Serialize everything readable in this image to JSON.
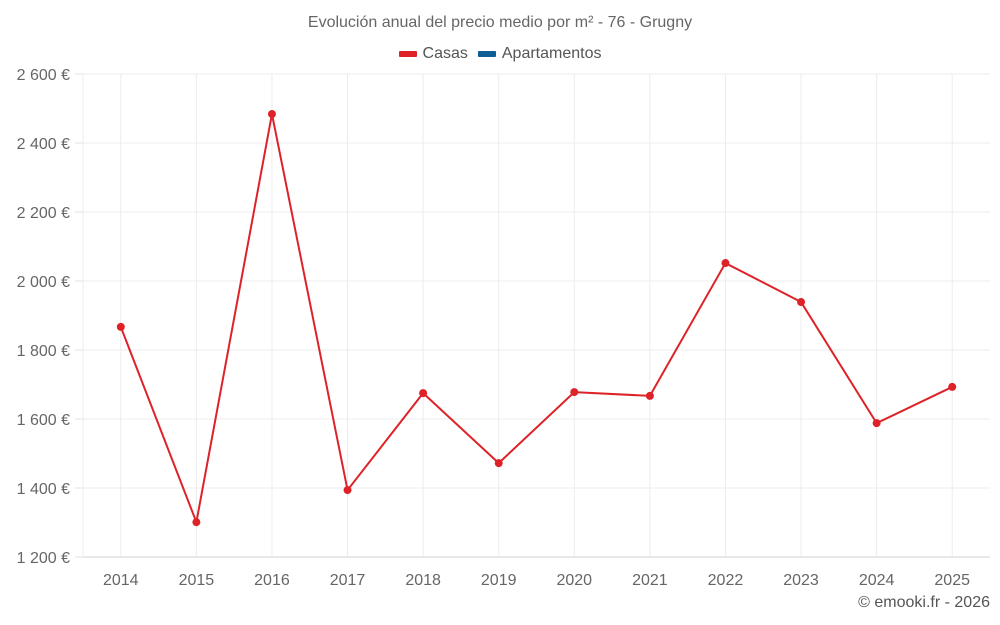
{
  "chart_data": {
    "type": "line",
    "title": "Evolución anual del precio medio por m² - 76 - Grugny",
    "categories": [
      "2014",
      "2015",
      "2016",
      "2017",
      "2018",
      "2019",
      "2020",
      "2021",
      "2022",
      "2023",
      "2024",
      "2025"
    ],
    "series": [
      {
        "name": "Casas",
        "color": "#dd2328",
        "values": [
          1867,
          1301,
          2484,
          1394,
          1675,
          1472,
          1678,
          1667,
          2052,
          1939,
          1588,
          1693
        ]
      },
      {
        "name": "Apartamentos",
        "color": "#0e5e96",
        "values": []
      }
    ],
    "xlabel": "",
    "ylabel": "",
    "ylim": [
      1200,
      2600
    ],
    "yticks": [
      1200,
      1400,
      1600,
      1800,
      2000,
      2200,
      2400,
      2600
    ],
    "ytick_labels": [
      "1 200 €",
      "1 400 €",
      "1 600 €",
      "1 800 €",
      "2 000 €",
      "2 200 €",
      "2 400 €",
      "2 600 €"
    ],
    "grid": true,
    "legend_position": "top"
  },
  "header": {
    "title": "Evolución anual del precio medio por m² - 76 - Grugny"
  },
  "legend": {
    "items": [
      {
        "label": "Casas",
        "color": "#dd2328"
      },
      {
        "label": "Apartamentos",
        "color": "#0e5e96"
      }
    ]
  },
  "footer": {
    "credit": "© emooki.fr - 2026"
  }
}
